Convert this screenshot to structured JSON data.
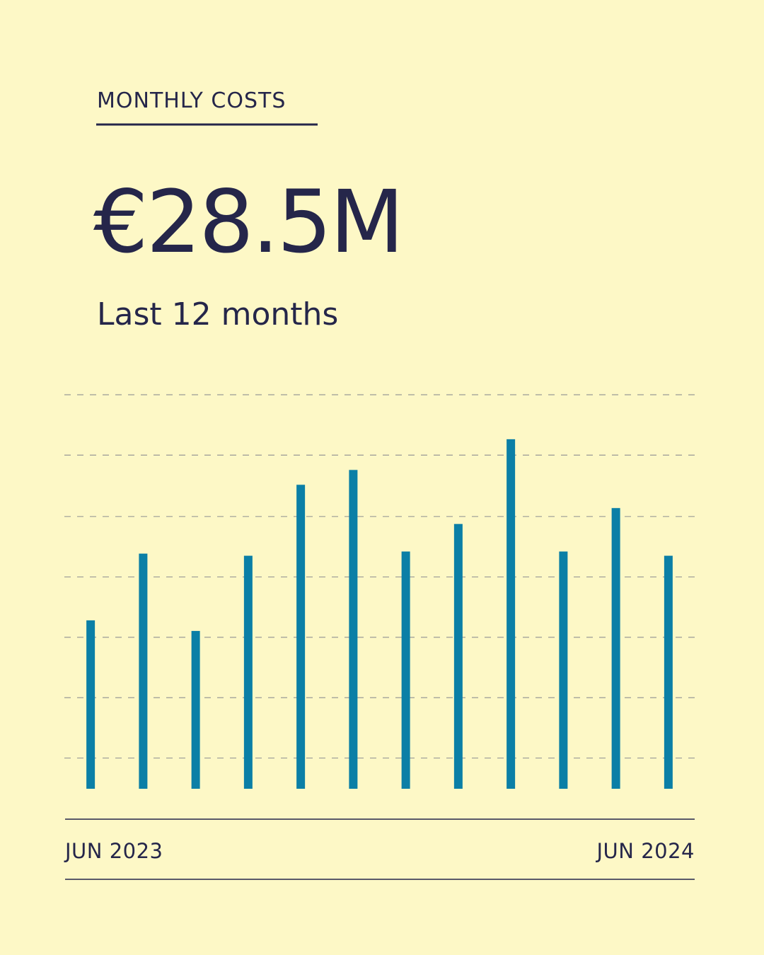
{
  "chart_data": {
    "type": "bar",
    "title": "MONTHLY COSTS",
    "headline": "€28.5M",
    "subtitle": "Last 12 months",
    "categories": [
      "JUN 2023",
      null,
      null,
      null,
      null,
      null,
      null,
      null,
      null,
      null,
      null,
      "JUN 2024"
    ],
    "values": [
      1.59,
      2.22,
      1.49,
      2.2,
      2.87,
      3.01,
      2.24,
      2.5,
      3.3,
      2.24,
      2.65,
      2.2
    ],
    "color": "#0b7fa6",
    "ylim": [
      0,
      3.72
    ],
    "yticks": [
      0.29,
      0.86,
      1.43,
      2.0,
      2.57,
      3.15,
      3.72
    ],
    "grid": true
  }
}
